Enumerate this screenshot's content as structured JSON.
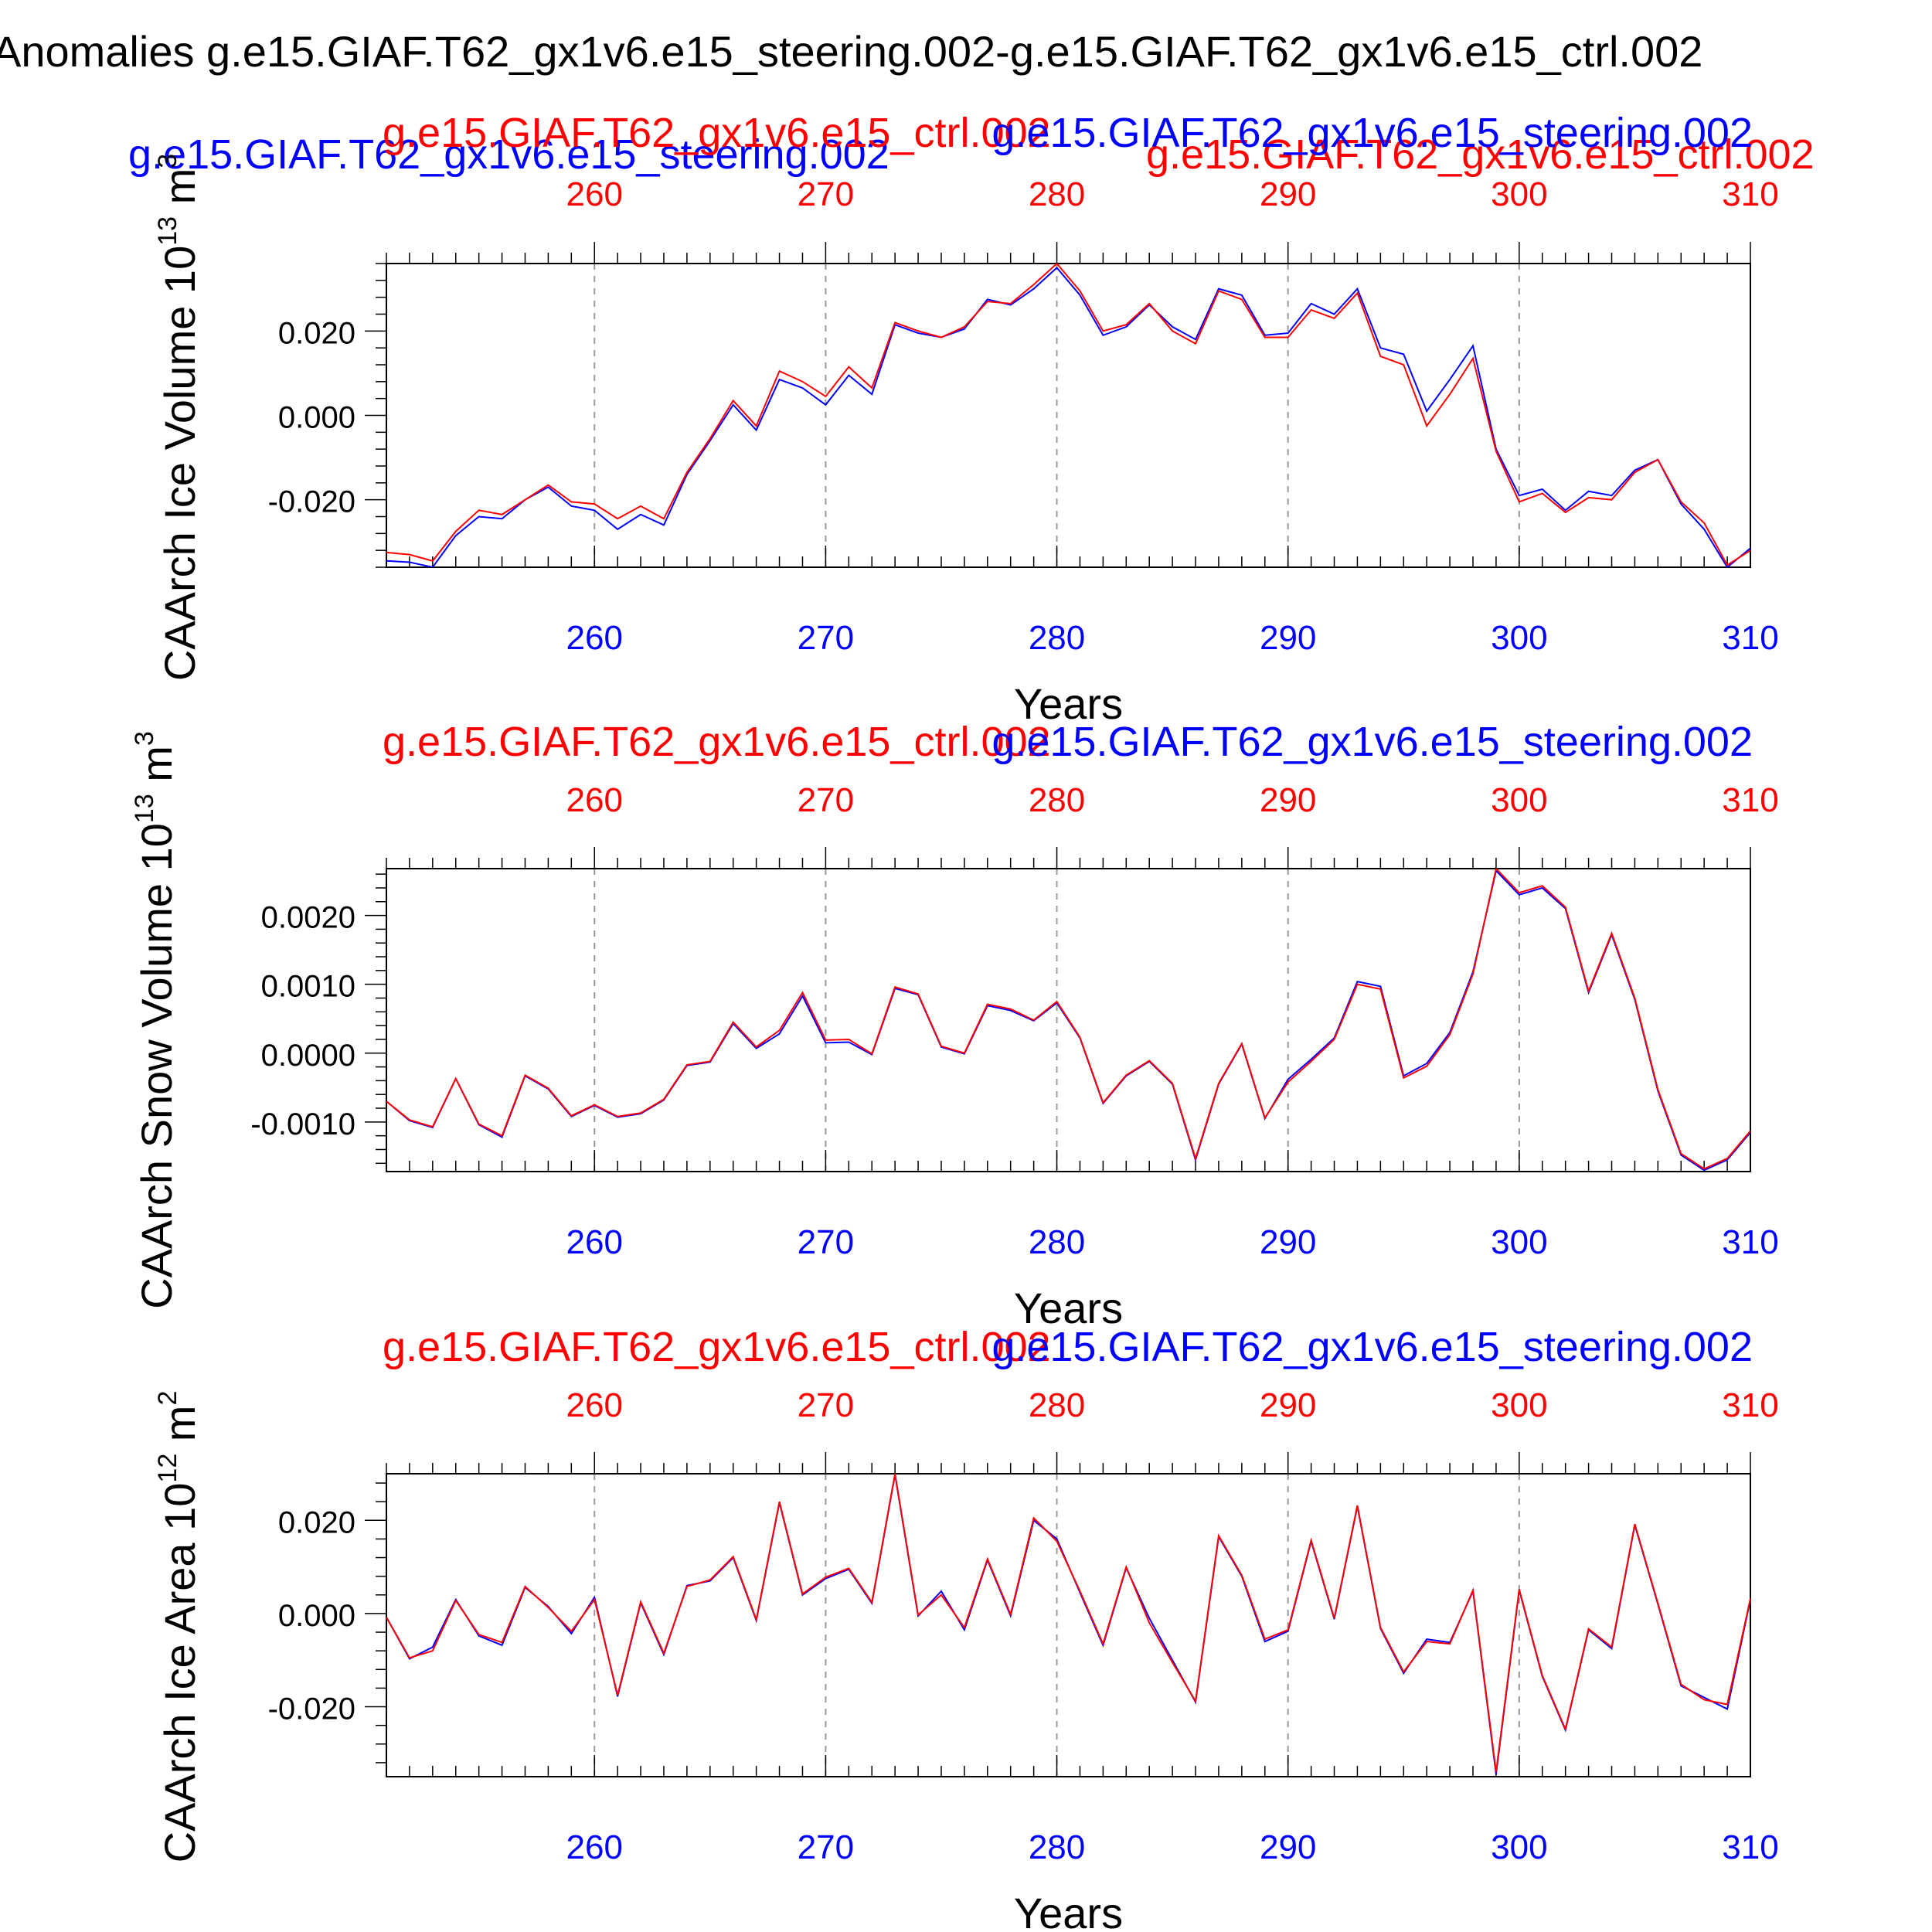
{
  "title": "Anomalies g.e15.GIAF.T62_gx1v6.e15_steering.002-g.e15.GIAF.T62_gx1v6.e15_ctrl.002",
  "header_labels": {
    "left_blue": "g.e15.GIAF.T62_gx1v6.e15_steering.002",
    "right_red": "g.e15.GIAF.T62_gx1v6.e15_ctrl.002"
  },
  "colors": {
    "steering": "#0000ff",
    "ctrl": "#ff0000",
    "axis": "#000000"
  },
  "chart_data": [
    {
      "type": "line",
      "ylabel": "CAArch Ice Volume 10^13 m^3",
      "ylabel_main": "CAArch Ice Volume 10",
      "ylabel_exp": "13",
      "ylabel_unit": " m",
      "ylabel_unit_exp": "3",
      "xlabel": "Years",
      "ylim": [
        -0.036,
        0.036
      ],
      "xlim": [
        251,
        310
      ],
      "xticks": [
        260,
        270,
        280,
        290,
        300,
        310
      ],
      "xtick_labels": [
        "260",
        "270",
        "280",
        "290",
        "300",
        "310"
      ],
      "yticks": [
        -0.02,
        0.0,
        0.02
      ],
      "ytick_labels": [
        "-0.020",
        "0.000",
        "0.020"
      ],
      "top_left_label": "g.e15.GIAF.T62_gx1v6.e15_ctrl.002",
      "top_right_label": "g.e15.GIAF.T62_gx1v6.e15_steering.002",
      "series": [
        {
          "name": "g.e15.GIAF.T62_gx1v6.e15_steering.002",
          "color": "#0000ff",
          "x_start": 251,
          "values": [
            -0.0345,
            -0.0348,
            -0.036,
            -0.0285,
            -0.024,
            -0.0245,
            -0.02,
            -0.017,
            -0.0215,
            -0.0225,
            -0.027,
            -0.0235,
            -0.026,
            -0.014,
            -0.006,
            0.0025,
            -0.0035,
            0.0085,
            0.0065,
            0.0025,
            0.0095,
            0.005,
            0.0215,
            0.0195,
            0.0185,
            0.0205,
            0.0275,
            0.0262,
            0.03,
            0.035,
            0.0285,
            0.019,
            0.021,
            0.0262,
            0.021,
            0.018,
            0.03,
            0.0285,
            0.019,
            0.0195,
            0.0265,
            0.024,
            0.03,
            0.016,
            0.0145,
            0.001,
            0.0085,
            0.0165,
            -0.008,
            -0.019,
            -0.0175,
            -0.0225,
            -0.018,
            -0.019,
            -0.013,
            -0.0105,
            -0.021,
            -0.027,
            -0.036,
            -0.0315
          ]
        },
        {
          "name": "g.e15.GIAF.T62_gx1v6.e15_ctrl.002",
          "color": "#ff0000",
          "x_start": 251,
          "values": [
            -0.0325,
            -0.033,
            -0.0345,
            -0.0275,
            -0.0225,
            -0.0235,
            -0.02,
            -0.0165,
            -0.0205,
            -0.021,
            -0.0245,
            -0.0215,
            -0.0245,
            -0.0135,
            -0.0055,
            0.0035,
            -0.0025,
            0.0105,
            0.008,
            0.0045,
            0.0115,
            0.0065,
            0.022,
            0.02,
            0.0185,
            0.021,
            0.027,
            0.0265,
            0.031,
            0.036,
            0.0295,
            0.02,
            0.0215,
            0.0265,
            0.02,
            0.017,
            0.0295,
            0.0275,
            0.0185,
            0.0185,
            0.025,
            0.023,
            0.029,
            0.014,
            0.012,
            -0.0025,
            0.005,
            0.0135,
            -0.0085,
            -0.0205,
            -0.0185,
            -0.023,
            -0.0195,
            -0.02,
            -0.0135,
            -0.0105,
            -0.0205,
            -0.0255,
            -0.0355,
            -0.032
          ]
        }
      ]
    },
    {
      "type": "line",
      "ylabel": "CAArch Snow Volume 10^13 m^3",
      "ylabel_main": "CAArch Snow Volume 10",
      "ylabel_exp": "13",
      "ylabel_unit": " m",
      "ylabel_unit_exp": "3",
      "xlabel": "Years",
      "ylim": [
        -0.00172,
        0.00268
      ],
      "xlim": [
        251,
        310
      ],
      "xticks": [
        260,
        270,
        280,
        290,
        300,
        310
      ],
      "xtick_labels": [
        "260",
        "270",
        "280",
        "290",
        "300",
        "310"
      ],
      "yticks": [
        -0.001,
        0.0,
        0.001,
        0.002
      ],
      "ytick_labels": [
        "-0.0010",
        "0.0000",
        "0.0010",
        "0.0020"
      ],
      "top_left_label": "g.e15.GIAF.T62_gx1v6.e15_ctrl.002",
      "top_right_label": "g.e15.GIAF.T62_gx1v6.e15_steering.002",
      "series": [
        {
          "name": "g.e15.GIAF.T62_gx1v6.e15_steering.002",
          "color": "#0000ff",
          "x_start": 251,
          "values": [
            -0.0007,
            -0.00098,
            -0.00108,
            -0.00037,
            -0.00104,
            -0.00122,
            -0.00033,
            -0.00052,
            -0.00092,
            -0.00076,
            -0.00093,
            -0.00088,
            -0.00068,
            -0.00018,
            -0.00013,
            0.00043,
            7e-05,
            0.00028,
            0.00083,
            0.00015,
            0.00016,
            -2e-05,
            0.00094,
            0.00085,
            9e-05,
            -1e-05,
            0.00069,
            0.00062,
            0.00047,
            0.00073,
            0.00022,
            -0.00073,
            -0.00033,
            -0.00012,
            -0.00045,
            -0.00155,
            -0.00045,
            0.00013,
            -0.00095,
            -0.00038,
            -9e-05,
            0.00022,
            0.00104,
            0.00097,
            -0.00033,
            -0.00015,
            0.0003,
            0.00118,
            0.00265,
            0.0023,
            0.0024,
            0.0021,
            0.00088,
            0.00172,
            0.00078,
            -0.00055,
            -0.00148,
            -0.0017,
            -0.00155,
            -0.00115
          ]
        },
        {
          "name": "g.e15.GIAF.T62_gx1v6.e15_ctrl.002",
          "color": "#ff0000",
          "x_start": 251,
          "values": [
            -0.0007,
            -0.00097,
            -0.00107,
            -0.00037,
            -0.00103,
            -0.0012,
            -0.00032,
            -0.00051,
            -0.00091,
            -0.00075,
            -0.00092,
            -0.00087,
            -0.00067,
            -0.00017,
            -0.00012,
            0.00045,
            9e-05,
            0.00033,
            0.00088,
            0.00019,
            0.0002,
            -1e-05,
            0.00096,
            0.00086,
            0.0001,
            0.0,
            0.00071,
            0.00064,
            0.00048,
            0.00075,
            0.00023,
            -0.00072,
            -0.00032,
            -0.00011,
            -0.00044,
            -0.00153,
            -0.00044,
            0.00014,
            -0.00094,
            -0.00042,
            -0.00012,
            0.0002,
            0.001,
            0.00093,
            -0.00036,
            -0.00019,
            0.00027,
            0.00115,
            0.00268,
            0.00233,
            0.00243,
            0.00212,
            0.0009,
            0.00174,
            0.0008,
            -0.00053,
            -0.00146,
            -0.00168,
            -0.00153,
            -0.00113
          ]
        }
      ]
    },
    {
      "type": "line",
      "ylabel": "CAArch Ice Area 10^12 m^2",
      "ylabel_main": "CAArch Ice Area 10",
      "ylabel_exp": "12",
      "ylabel_unit": " m",
      "ylabel_unit_exp": "2",
      "xlabel": "Years",
      "ylim": [
        -0.035,
        0.03
      ],
      "xlim": [
        251,
        310
      ],
      "xticks": [
        260,
        270,
        280,
        290,
        300,
        310
      ],
      "xtick_labels": [
        "260",
        "270",
        "280",
        "290",
        "300",
        "310"
      ],
      "yticks": [
        -0.02,
        0.0,
        0.02
      ],
      "ytick_labels": [
        "-0.020",
        "0.000",
        "0.020"
      ],
      "top_left_label": "g.e15.GIAF.T62_gx1v6.e15_ctrl.002",
      "top_right_label": "g.e15.GIAF.T62_gx1v6.e15_steering.002",
      "series": [
        {
          "name": "g.e15.GIAF.T62_gx1v6.e15_steering.002",
          "color": "#0000ff",
          "x_start": 251,
          "values": [
            -0.0008,
            -0.0097,
            -0.0072,
            0.003,
            -0.0048,
            -0.0068,
            0.0056,
            0.0015,
            -0.0043,
            0.0035,
            -0.0178,
            0.0023,
            -0.0088,
            0.006,
            0.007,
            0.012,
            -0.0015,
            0.0238,
            0.004,
            0.0075,
            0.0095,
            0.0022,
            0.0298,
            -0.0005,
            0.0048,
            -0.0035,
            0.0115,
            -0.0005,
            0.02,
            0.016,
            0.0045,
            -0.0068,
            0.0098,
            -0.001,
            -0.01,
            -0.019,
            0.0165,
            0.008,
            -0.006,
            -0.0038,
            0.0155,
            -0.0012,
            0.023,
            -0.0032,
            -0.0128,
            -0.0055,
            -0.0062,
            0.0048,
            -0.0345,
            0.005,
            -0.0135,
            -0.025,
            -0.0035,
            -0.0075,
            0.019,
            0.002,
            -0.0155,
            -0.018,
            -0.0205,
            0.003
          ]
        },
        {
          "name": "g.e15.GIAF.T62_gx1v6.e15_ctrl.002",
          "color": "#ff0000",
          "x_start": 251,
          "values": [
            -0.0008,
            -0.0095,
            -0.008,
            0.0028,
            -0.0045,
            -0.0062,
            0.0058,
            0.0013,
            -0.0038,
            0.003,
            -0.0175,
            0.0025,
            -0.0085,
            0.0058,
            0.0072,
            0.0122,
            -0.0013,
            0.024,
            0.0042,
            0.0078,
            0.0097,
            0.0024,
            0.03,
            -0.0003,
            0.004,
            -0.003,
            0.0117,
            -0.0002,
            0.0205,
            0.0155,
            0.0048,
            -0.0065,
            0.01,
            -0.002,
            -0.0105,
            -0.0188,
            0.0167,
            0.0082,
            -0.0055,
            -0.0035,
            0.0157,
            -0.001,
            0.0232,
            -0.003,
            -0.0125,
            -0.006,
            -0.0065,
            0.005,
            -0.034,
            0.0052,
            -0.0133,
            -0.0248,
            -0.0033,
            -0.0072,
            0.0192,
            0.0022,
            -0.0152,
            -0.0185,
            -0.0195,
            0.0032
          ]
        }
      ]
    }
  ]
}
